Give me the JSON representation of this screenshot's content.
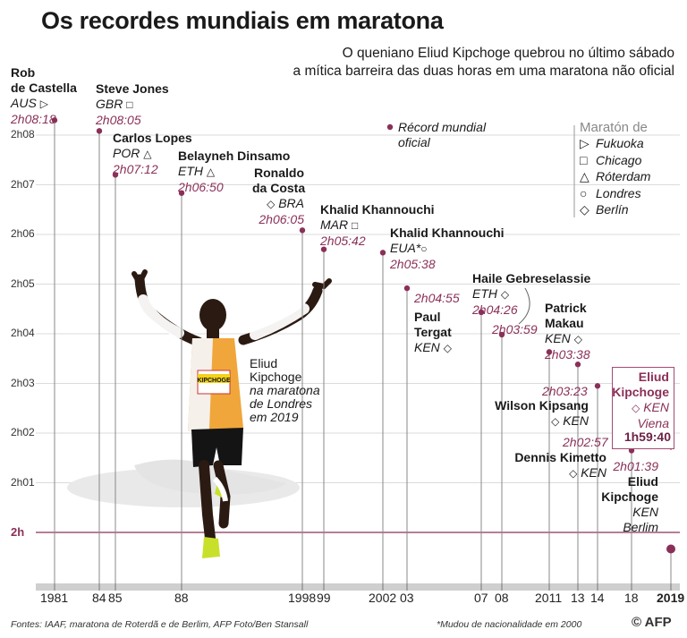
{
  "header": {
    "title": "Os recordes mundiais em maratona",
    "subtitle_line1": "O queniano Eliud Kipchoge quebrou no último sábado",
    "subtitle_line2": "a mítica barreira das duas horas em uma maratona não oficial"
  },
  "legend": {
    "world_record_line1": "Récord mundial",
    "world_record_line2": "oficial",
    "title": "Maratón de",
    "items": [
      {
        "symbol": "triangle-right",
        "glyph": "▷",
        "label": "Fukuoka"
      },
      {
        "symbol": "square",
        "glyph": "□",
        "label": "Chicago"
      },
      {
        "symbol": "triangle-up",
        "glyph": "△",
        "label": "Róterdam"
      },
      {
        "symbol": "circle",
        "glyph": "○",
        "label": "Londres"
      },
      {
        "symbol": "diamond",
        "glyph": "◇",
        "label": "Berlín"
      }
    ]
  },
  "chart_data": {
    "type": "scatter",
    "title": "Os recordes mundiais em maratona",
    "x_tick_labels": [
      "1981",
      "84",
      "85",
      "88",
      "1998",
      "99",
      "2002",
      "03",
      "07",
      "08",
      "2011",
      "13",
      "14",
      "18",
      "2019"
    ],
    "y_tick_labels": [
      "2h08",
      "2h07",
      "2h06",
      "2h05",
      "2h04",
      "2h03",
      "2h02",
      "2h01",
      "2h"
    ],
    "ylim_seconds": [
      7200,
      7680
    ],
    "series": [
      {
        "points": [
          {
            "year": 1981,
            "athlete": "Rob de Castella",
            "country": "AUS",
            "marathon": "Fukuoka",
            "marker": "▷",
            "time": "2h08:18",
            "seconds": 7698
          },
          {
            "year": 1984,
            "athlete": "Steve Jones",
            "country": "GBR",
            "marathon": "Chicago",
            "marker": "□",
            "time": "2h08:05",
            "seconds": 7685
          },
          {
            "year": 1985,
            "athlete": "Carlos Lopes",
            "country": "POR",
            "marathon": "Róterdam",
            "marker": "△",
            "time": "2h07:12",
            "seconds": 7632
          },
          {
            "year": 1988,
            "athlete": "Belayneh Dinsamo",
            "country": "ETH",
            "marathon": "Róterdam",
            "marker": "△",
            "time": "2h06:50",
            "seconds": 7610
          },
          {
            "year": 1998,
            "athlete": "Ronaldo da Costa",
            "country": "BRA",
            "marathon": "Berlín",
            "marker": "◇",
            "time": "2h06:05",
            "seconds": 7565
          },
          {
            "year": 1999,
            "athlete": "Khalid Khannouchi",
            "country": "MAR",
            "marathon": "Chicago",
            "marker": "□",
            "time": "2h05:42",
            "seconds": 7542
          },
          {
            "year": 2002,
            "athlete": "Khalid Khannouchi",
            "country": "EUA*",
            "marathon": "Londres",
            "marker": "○",
            "time": "2h05:38",
            "seconds": 7538
          },
          {
            "year": 2003,
            "athlete": "Paul Tergat",
            "country": "KEN",
            "marathon": "Berlín",
            "marker": "◇",
            "time": "2h04:55",
            "seconds": 7495
          },
          {
            "year": 2007,
            "athlete": "Haile Gebreselassie",
            "country": "ETH",
            "marathon": "Berlín",
            "marker": "◇",
            "time": "2h04:26",
            "seconds": 7466
          },
          {
            "year": 2008,
            "athlete": "Haile Gebreselassie",
            "country": "ETH",
            "marathon": "Berlín",
            "marker": "◇",
            "time": "2h03:59",
            "seconds": 7439
          },
          {
            "year": 2011,
            "athlete": "Patrick Makau",
            "country": "KEN",
            "marathon": "Berlín",
            "marker": "◇",
            "time": "2h03:38",
            "seconds": 7418
          },
          {
            "year": 2013,
            "athlete": "Wilson Kipsang",
            "country": "KEN",
            "marathon": "Berlín",
            "marker": "◇",
            "time": "2h03:23",
            "seconds": 7403
          },
          {
            "year": 2014,
            "athlete": "Dennis Kimetto",
            "country": "KEN",
            "marathon": "Berlín",
            "marker": "◇",
            "time": "2h02:57",
            "seconds": 7377
          },
          {
            "year": 2018,
            "athlete": "Eliud Kipchoge",
            "country": "KEN",
            "marathon": "Berlím",
            "marker": "◇",
            "time": "2h01:39",
            "seconds": 7299
          },
          {
            "year": 2019,
            "athlete": "Eliud Kipchoge",
            "country": "KEN",
            "marathon": "Viena",
            "marker": "◇",
            "time": "1h59:40",
            "seconds": 7180,
            "unofficial": true
          }
        ]
      }
    ],
    "grid": true,
    "legend_position": "top-right"
  },
  "labels": {
    "castella_1": "Rob",
    "castella_2": "de Castella",
    "castella_nat": "AUS",
    "castella_time": "2h08:18",
    "jones_name": "Steve Jones",
    "jones_nat": "GBR",
    "jones_time": "2h08:05",
    "lopes_name": "Carlos Lopes",
    "lopes_nat": "POR",
    "lopes_time": "2h07:12",
    "dinsamo_name": "Belayneh Dinsamo",
    "dinsamo_nat": "ETH",
    "dinsamo_time": "2h06:50",
    "costa_1": "Ronaldo",
    "costa_2": "da Costa",
    "costa_nat": "BRA",
    "costa_time": "2h06:05",
    "khan1_name": "Khalid Khannouchi",
    "khan1_nat": "MAR",
    "khan1_time": "2h05:42",
    "khan2_name": "Khalid Khannouchi",
    "khan2_nat": "EUA*",
    "khan2_time": "2h05:38",
    "tergat_time": "2h04:55",
    "tergat_1": "Paul",
    "tergat_2": "Tergat",
    "tergat_nat": "KEN",
    "haile_name": "Haile Gebreselassie",
    "haile_nat": "ETH",
    "haile_time1": "2h04:26",
    "haile_time2": "2h03:59",
    "makau_1": "Patrick",
    "makau_2": "Makau",
    "makau_nat": "KEN",
    "makau_time": "2h03:38",
    "kipsang_time": "2h03:23",
    "kipsang_name": "Wilson Kipsang",
    "kipsang_nat": "KEN",
    "kimetto_time": "2h02:57",
    "kimetto_name": "Dennis Kimetto",
    "kimetto_nat": "KEN",
    "kip18_time": "2h01:39",
    "kip18_1": "Eliud",
    "kip18_2": "Kipchoge",
    "kip18_nat": "KEN",
    "kip18_place": "Berlim",
    "kip19_1": "Eliud",
    "kip19_2": "Kipchoge",
    "kip19_nat": "KEN",
    "kip19_place": "Viena",
    "kip19_time": "1h59:40"
  },
  "photo_caption": {
    "line1": "Eliud",
    "line2": "Kipchoge",
    "line3": "na maratona",
    "line4": "de Londres",
    "line5": "em 2019",
    "bib_text": "KIPCHOGE"
  },
  "footer": {
    "sources": "Fontes: IAAF, maratona de Roterdã e de Berlim, AFP Foto/Ben Stansall",
    "note": "*Mudou de nacionalidade em 2000",
    "credit": "© AFP"
  },
  "colors": {
    "accent": "#8a3058",
    "grid": "#cfcfcf",
    "stem": "#888888"
  }
}
